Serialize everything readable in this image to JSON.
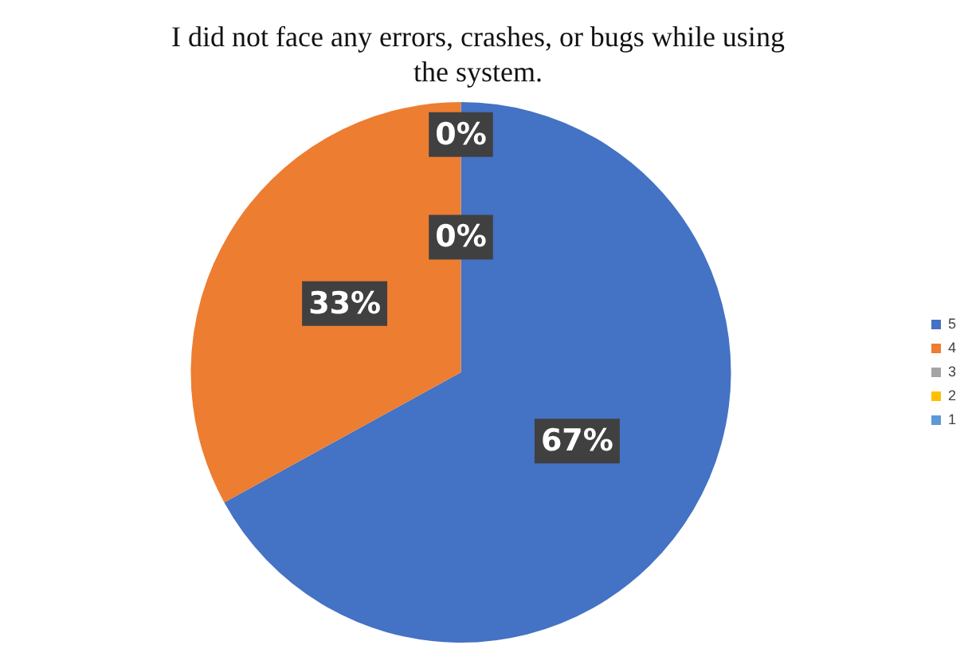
{
  "chart_data": {
    "type": "pie",
    "title": "I did not face any errors, crashes, or bugs while using the system.",
    "categories": [
      "5",
      "4",
      "3",
      "2",
      "1"
    ],
    "values": [
      67,
      33,
      0,
      0,
      0
    ],
    "colors": [
      "#4472c4",
      "#ed7d31",
      "#a5a5a5",
      "#ffc000",
      "#5b9bd5"
    ],
    "value_labels": [
      "67%",
      "33%",
      "0%",
      "0%",
      null
    ],
    "legend": "right"
  }
}
